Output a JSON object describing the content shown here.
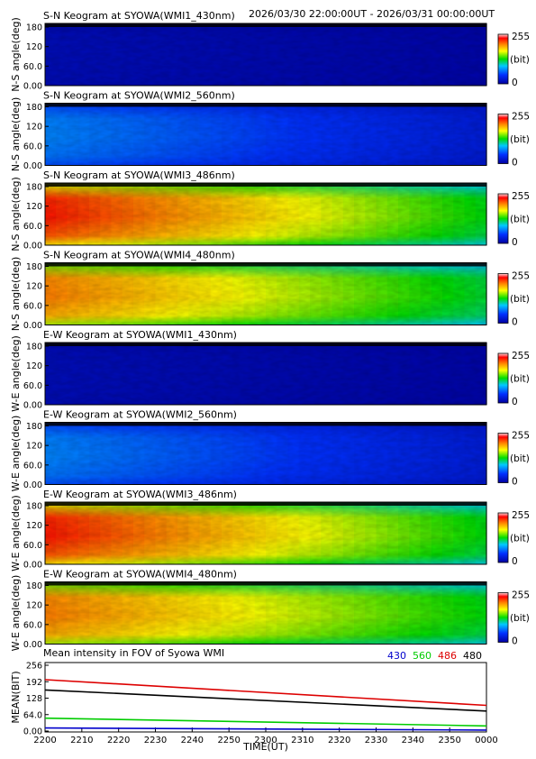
{
  "header": {
    "date_range": "2026/03/30 22:00:00UT - 2026/03/31 00:00:00UT"
  },
  "colorbar": {
    "max_label": "255",
    "unit_label": "(bit)",
    "min_label": "0"
  },
  "chart_data": [
    {
      "type": "heatmap",
      "id": "sn430",
      "title": "S-N Keogram at SYOWA(WMI1_430nm)",
      "ylabel": "N-S angle(deg)",
      "yticks": [
        "180",
        "120",
        "60.0",
        "0.00"
      ],
      "ylim": [
        0,
        180
      ],
      "color_scale": [
        0,
        255
      ],
      "intensity_start": 12,
      "intensity_end": 5
    },
    {
      "type": "heatmap",
      "id": "sn560",
      "title": "S-N Keogram at SYOWA(WMI2_560nm)",
      "ylabel": "N-S angle(deg)",
      "yticks": [
        "180",
        "120",
        "60.0",
        "0.00"
      ],
      "ylim": [
        0,
        180
      ],
      "color_scale": [
        0,
        255
      ],
      "intensity_start": 70,
      "intensity_end": 28
    },
    {
      "type": "heatmap",
      "id": "sn486",
      "title": "S-N Keogram at SYOWA(WMI3_486nm)",
      "ylabel": "N-S angle(deg)",
      "yticks": [
        "180",
        "120",
        "60.0",
        "0.00"
      ],
      "ylim": [
        0,
        180
      ],
      "color_scale": [
        0,
        255
      ],
      "intensity_start": 225,
      "intensity_end": 125
    },
    {
      "type": "heatmap",
      "id": "sn480",
      "title": "S-N Keogram at SYOWA(WMI4_480nm)",
      "ylabel": "N-S angle(deg)",
      "yticks": [
        "180",
        "120",
        "60.0",
        "0.00"
      ],
      "ylim": [
        0,
        180
      ],
      "color_scale": [
        0,
        255
      ],
      "intensity_start": 200,
      "intensity_end": 120
    },
    {
      "type": "heatmap",
      "id": "ew430",
      "title": "E-W Keogram at SYOWA(WMI1_430nm)",
      "ylabel": "W-E angle(deg)",
      "yticks": [
        "180",
        "120",
        "60.0",
        "0.00"
      ],
      "ylim": [
        0,
        180
      ],
      "color_scale": [
        0,
        255
      ],
      "intensity_start": 12,
      "intensity_end": 5
    },
    {
      "type": "heatmap",
      "id": "ew560",
      "title": "E-W Keogram at SYOWA(WMI2_560nm)",
      "ylabel": "W-E angle(deg)",
      "yticks": [
        "180",
        "120",
        "60.0",
        "0.00"
      ],
      "ylim": [
        0,
        180
      ],
      "color_scale": [
        0,
        255
      ],
      "intensity_start": 70,
      "intensity_end": 28
    },
    {
      "type": "heatmap",
      "id": "ew486",
      "title": "E-W Keogram at SYOWA(WMI3_486nm)",
      "ylabel": "W-E angle(deg)",
      "yticks": [
        "180",
        "120",
        "60.0",
        "0.00"
      ],
      "ylim": [
        0,
        180
      ],
      "color_scale": [
        0,
        255
      ],
      "intensity_start": 225,
      "intensity_end": 125
    },
    {
      "type": "heatmap",
      "id": "ew480",
      "title": "E-W Keogram at SYOWA(WMI4_480nm)",
      "ylabel": "W-E angle(deg)",
      "yticks": [
        "180",
        "120",
        "60.0",
        "0.00"
      ],
      "ylim": [
        0,
        180
      ],
      "color_scale": [
        0,
        255
      ],
      "intensity_start": 200,
      "intensity_end": 125
    },
    {
      "type": "line",
      "id": "mean",
      "title": "Mean intensity in FOV of Syowa WMI",
      "xlabel": "TIME(UT)",
      "ylabel": "MEAN(BIT)",
      "xticks": [
        "2200",
        "2210",
        "2220",
        "2230",
        "2240",
        "2250",
        "2300",
        "2310",
        "2320",
        "2330",
        "2340",
        "2350",
        "0000"
      ],
      "yticks": [
        "256",
        "192",
        "128",
        "64.0",
        "0.00"
      ],
      "xlim": [
        0,
        120
      ],
      "ylim": [
        0,
        256
      ],
      "grid": false,
      "legend": "top-right",
      "series": [
        {
          "name": "430",
          "color": "#0000cc",
          "x": [
            0,
            120
          ],
          "y": [
            12,
            4
          ]
        },
        {
          "name": "560",
          "color": "#00cc00",
          "x": [
            0,
            120
          ],
          "y": [
            50,
            20
          ]
        },
        {
          "name": "486",
          "color": "#dd0000",
          "x": [
            0,
            120
          ],
          "y": [
            200,
            100
          ]
        },
        {
          "name": "480",
          "color": "#000000",
          "x": [
            0,
            120
          ],
          "y": [
            160,
            78
          ]
        }
      ]
    }
  ]
}
